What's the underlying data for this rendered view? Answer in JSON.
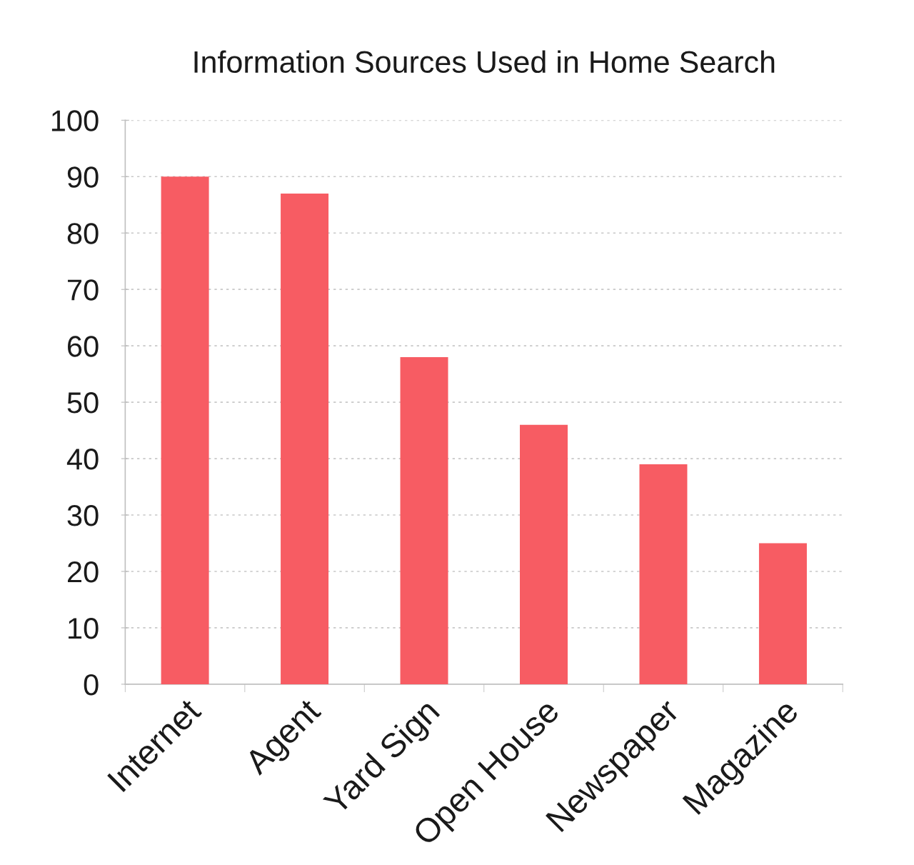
{
  "chart_data": {
    "type": "bar",
    "title": "Information Sources Used in Home Search",
    "categories": [
      "Internet",
      "Agent",
      "Yard Sign",
      "Open House",
      "Newspaper",
      "Magazine"
    ],
    "values": [
      90,
      87,
      58,
      46,
      39,
      25
    ],
    "color": "#f75c63",
    "ylim": [
      0,
      100
    ],
    "yticks": [
      0,
      10,
      20,
      30,
      40,
      50,
      60,
      70,
      80,
      90,
      100
    ],
    "grid": "y"
  }
}
